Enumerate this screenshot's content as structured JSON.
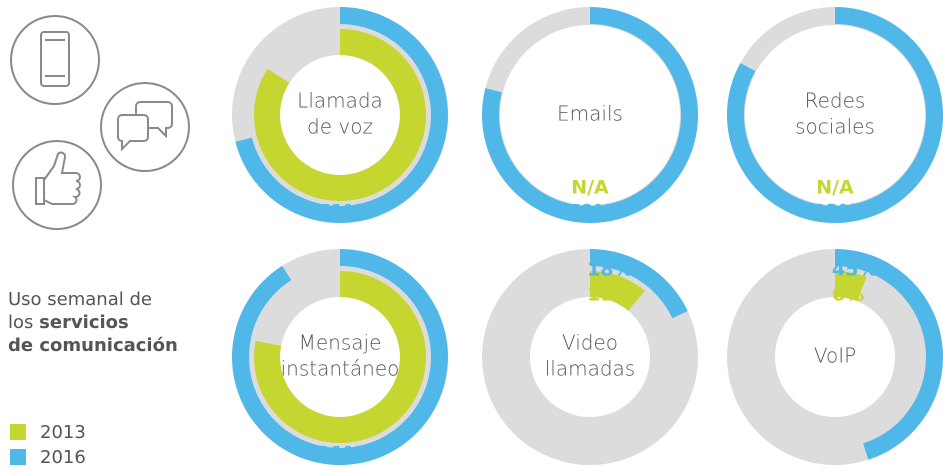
{
  "chart_data": {
    "type": "donut",
    "subtitle": [
      "Uso semanal de",
      "los",
      "servicios",
      "de comunicación"
    ],
    "categories": [
      [
        "Llamada",
        "de voz"
      ],
      [
        "Emails"
      ],
      [
        "Redes",
        "sociales"
      ],
      [
        "Mensaje",
        "instantáneo"
      ],
      [
        "Video",
        "llamadas"
      ],
      [
        "VoIP"
      ]
    ],
    "remainder_color": "#dcdcdc",
    "series": [
      {
        "name": "2013",
        "color": "#c5d631",
        "values": [
          84,
          null,
          null,
          78,
          11,
          6
        ],
        "value_labels": [
          "84%",
          "N/A",
          "N/A",
          "78%",
          "11%",
          "6%"
        ]
      },
      {
        "name": "2016",
        "color": "#4fb8e8",
        "values": [
          71,
          79,
          83,
          91,
          18,
          45
        ],
        "value_labels": [
          "71%",
          "79%",
          "83%",
          "91%",
          "18%",
          "45%"
        ]
      }
    ]
  }
}
